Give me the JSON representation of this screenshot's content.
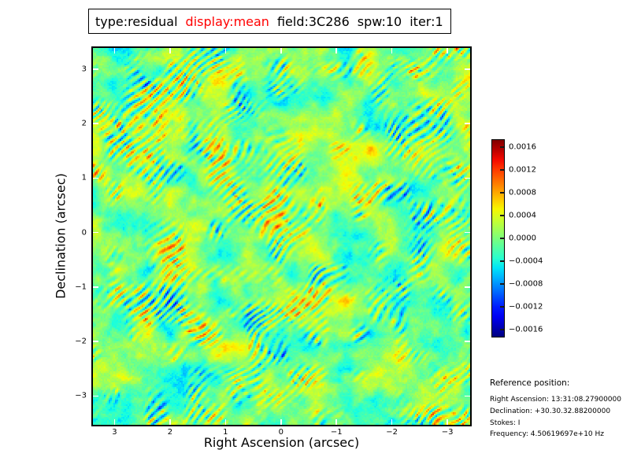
{
  "title": {
    "segments": [
      {
        "text": "type:residual",
        "color": "#000000"
      },
      {
        "text": "display:mean",
        "color": "#ff0000"
      },
      {
        "text": "field:3C286",
        "color": "#000000"
      },
      {
        "text": "spw:10",
        "color": "#000000"
      },
      {
        "text": "iter:1",
        "color": "#000000"
      }
    ]
  },
  "chart_data": {
    "type": "heatmap",
    "title": "type:residual display:mean field:3C286 spw:10 iter:1",
    "xlabel": "Right Ascension (arcsec)",
    "ylabel": "Declination (arcsec)",
    "x_range": [
      3.39,
      -3.41
    ],
    "y_range": [
      3.39,
      -3.53
    ],
    "x_ticks": [
      {
        "v": 3,
        "label": "3"
      },
      {
        "v": 2,
        "label": "2"
      },
      {
        "v": 1,
        "label": "1"
      },
      {
        "v": 0,
        "label": "0"
      },
      {
        "v": -1,
        "label": "−1"
      },
      {
        "v": -2,
        "label": "−2"
      },
      {
        "v": -3,
        "label": "−3"
      }
    ],
    "y_ticks": [
      {
        "v": 3,
        "label": "3"
      },
      {
        "v": 2,
        "label": "2"
      },
      {
        "v": 1,
        "label": "1"
      },
      {
        "v": 0,
        "label": "0"
      },
      {
        "v": -1,
        "label": "−1"
      },
      {
        "v": -2,
        "label": "−2"
      },
      {
        "v": -3,
        "label": "−3"
      }
    ],
    "colormap": "jet",
    "value_range": [
      -0.001724,
      0.001724
    ],
    "grid": false,
    "description": "Zero-mean interferometric residual noise image: turquoise-green mottled background with patchy diagonal (lower-left to upper-right) ripple streaks of alternating orange/yellow and blue blobs; peak values near ±0.0016.",
    "generator": {
      "seed": 11,
      "resolution": 240,
      "base_scales": [
        16,
        7,
        3.2
      ],
      "base_amps": [
        0.5,
        0.3,
        0.18
      ],
      "base_weight": 0.52,
      "stripe_wavenumber": 0.99,
      "stripe_amp": 0.62,
      "stripe_amp_offset": 0.28,
      "stripe_amp_gain": 1.15,
      "dither": 0.05,
      "contrast": 0.47
    }
  },
  "colorbar": {
    "vmin": -0.001724,
    "vmax": 0.001724,
    "colormap": "jet",
    "ticks": [
      {
        "v": 0.0016,
        "label": "0.0016"
      },
      {
        "v": 0.0012,
        "label": "0.0012"
      },
      {
        "v": 0.0008,
        "label": "0.0008"
      },
      {
        "v": 0.0004,
        "label": "0.0004"
      },
      {
        "v": 0.0,
        "label": "0.0000"
      },
      {
        "v": -0.0004,
        "label": "−0.0004"
      },
      {
        "v": -0.0008,
        "label": "−0.0008"
      },
      {
        "v": -0.0012,
        "label": "−0.0012"
      },
      {
        "v": -0.0016,
        "label": "−0.0016"
      }
    ]
  },
  "reference": {
    "heading": "Reference position:",
    "lines": [
      "Right Ascension: 13:31:08.27900000",
      "Declination: +30.30.32.88200000",
      "Stokes: I",
      "Frequency: 4.50619697e+10 Hz"
    ]
  }
}
